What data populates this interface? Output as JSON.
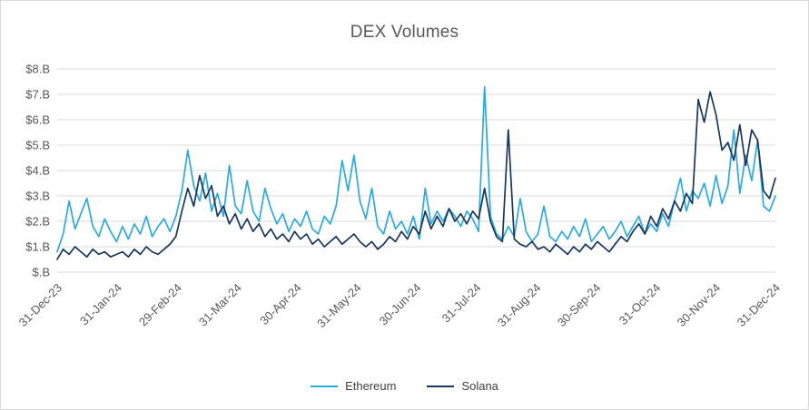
{
  "chart_data": {
    "type": "line",
    "title": "DEX Volumes",
    "xlabel": "",
    "ylabel": "",
    "ylim": [
      0,
      8
    ],
    "y_unit": "billions USD",
    "grid": "horizontal",
    "legend_position": "bottom",
    "y_ticks": [
      "$.B",
      "$1.B",
      "$2.B",
      "$3.B",
      "$4.B",
      "$5.B",
      "$6.B",
      "$7.B",
      "$8.B"
    ],
    "x_ticks": [
      "31-Dec-23",
      "31-Jan-24",
      "29-Feb-24",
      "31-Mar-24",
      "30-Apr-24",
      "31-May-24",
      "30-Jun-24",
      "31-Jul-24",
      "31-Aug-24",
      "30-Sep-24",
      "31-Oct-24",
      "30-Nov-24",
      "31-Dec-24"
    ],
    "series": [
      {
        "name": "Ethereum",
        "color": "#29ABE2",
        "values": [
          0.8,
          1.5,
          2.8,
          1.7,
          2.3,
          2.9,
          1.8,
          1.4,
          2.1,
          1.6,
          1.2,
          1.8,
          1.3,
          1.9,
          1.5,
          2.2,
          1.4,
          1.8,
          2.1,
          1.6,
          2.2,
          3.2,
          4.8,
          3.4,
          2.8,
          3.9,
          2.4,
          3.1,
          2.2,
          4.2,
          2.6,
          2.3,
          3.6,
          2.4,
          2.0,
          3.3,
          2.5,
          1.9,
          2.3,
          1.6,
          2.1,
          1.8,
          2.4,
          1.7,
          1.5,
          2.2,
          1.9,
          2.6,
          4.4,
          3.2,
          4.6,
          2.8,
          2.1,
          3.3,
          1.8,
          1.5,
          2.4,
          1.7,
          2.0,
          1.5,
          2.2,
          1.3,
          3.3,
          1.9,
          2.4,
          2.0,
          2.5,
          2.2,
          1.8,
          2.4,
          2.1,
          1.6,
          7.3,
          2.2,
          1.5,
          1.3,
          1.8,
          1.4,
          2.9,
          1.6,
          1.2,
          1.5,
          2.6,
          1.4,
          1.2,
          1.6,
          1.3,
          1.8,
          1.4,
          2.1,
          1.2,
          1.5,
          1.8,
          1.3,
          1.6,
          2.0,
          1.4,
          1.8,
          2.2,
          1.5,
          1.9,
          1.6,
          2.3,
          1.8,
          2.8,
          3.7,
          2.4,
          3.2,
          2.9,
          3.5,
          2.6,
          3.8,
          2.7,
          3.4,
          5.6,
          3.1,
          4.6,
          3.6,
          5.2,
          2.6,
          2.4,
          3.0
        ]
      },
      {
        "name": "Solana",
        "color": "#17375E",
        "values": [
          0.5,
          0.9,
          0.7,
          1.0,
          0.8,
          0.6,
          0.9,
          0.7,
          0.8,
          0.6,
          0.7,
          0.8,
          0.6,
          0.9,
          0.7,
          1.0,
          0.8,
          0.7,
          0.9,
          1.1,
          1.4,
          2.4,
          3.3,
          2.6,
          3.8,
          2.9,
          3.4,
          2.2,
          2.6,
          1.9,
          2.3,
          1.7,
          2.1,
          1.6,
          1.9,
          1.4,
          1.7,
          1.3,
          1.5,
          1.2,
          1.6,
          1.3,
          1.5,
          1.1,
          1.3,
          1.0,
          1.2,
          1.4,
          1.1,
          1.3,
          1.5,
          1.2,
          1.0,
          1.2,
          0.9,
          1.1,
          1.4,
          1.2,
          1.6,
          1.3,
          1.8,
          1.5,
          2.4,
          1.7,
          2.2,
          1.8,
          2.5,
          2.0,
          2.3,
          1.9,
          2.4,
          2.1,
          3.3,
          2.0,
          1.4,
          1.2,
          5.6,
          1.3,
          1.1,
          1.0,
          1.2,
          0.9,
          1.0,
          0.8,
          1.1,
          0.9,
          0.7,
          1.0,
          0.8,
          1.1,
          0.9,
          1.2,
          1.0,
          0.8,
          1.1,
          1.4,
          1.2,
          1.6,
          1.9,
          1.5,
          2.2,
          1.8,
          2.5,
          2.1,
          2.8,
          2.4,
          3.1,
          2.7,
          6.8,
          5.9,
          7.1,
          6.2,
          4.8,
          5.1,
          4.4,
          5.8,
          4.2,
          5.6,
          5.2,
          3.2,
          2.9,
          3.7
        ]
      }
    ]
  },
  "legend": {
    "ethereum_label": "Ethereum",
    "solana_label": "Solana"
  },
  "style": {
    "gridline_color": "#d9d9d9",
    "axis_text_color": "#595959",
    "title_color": "#595959"
  }
}
